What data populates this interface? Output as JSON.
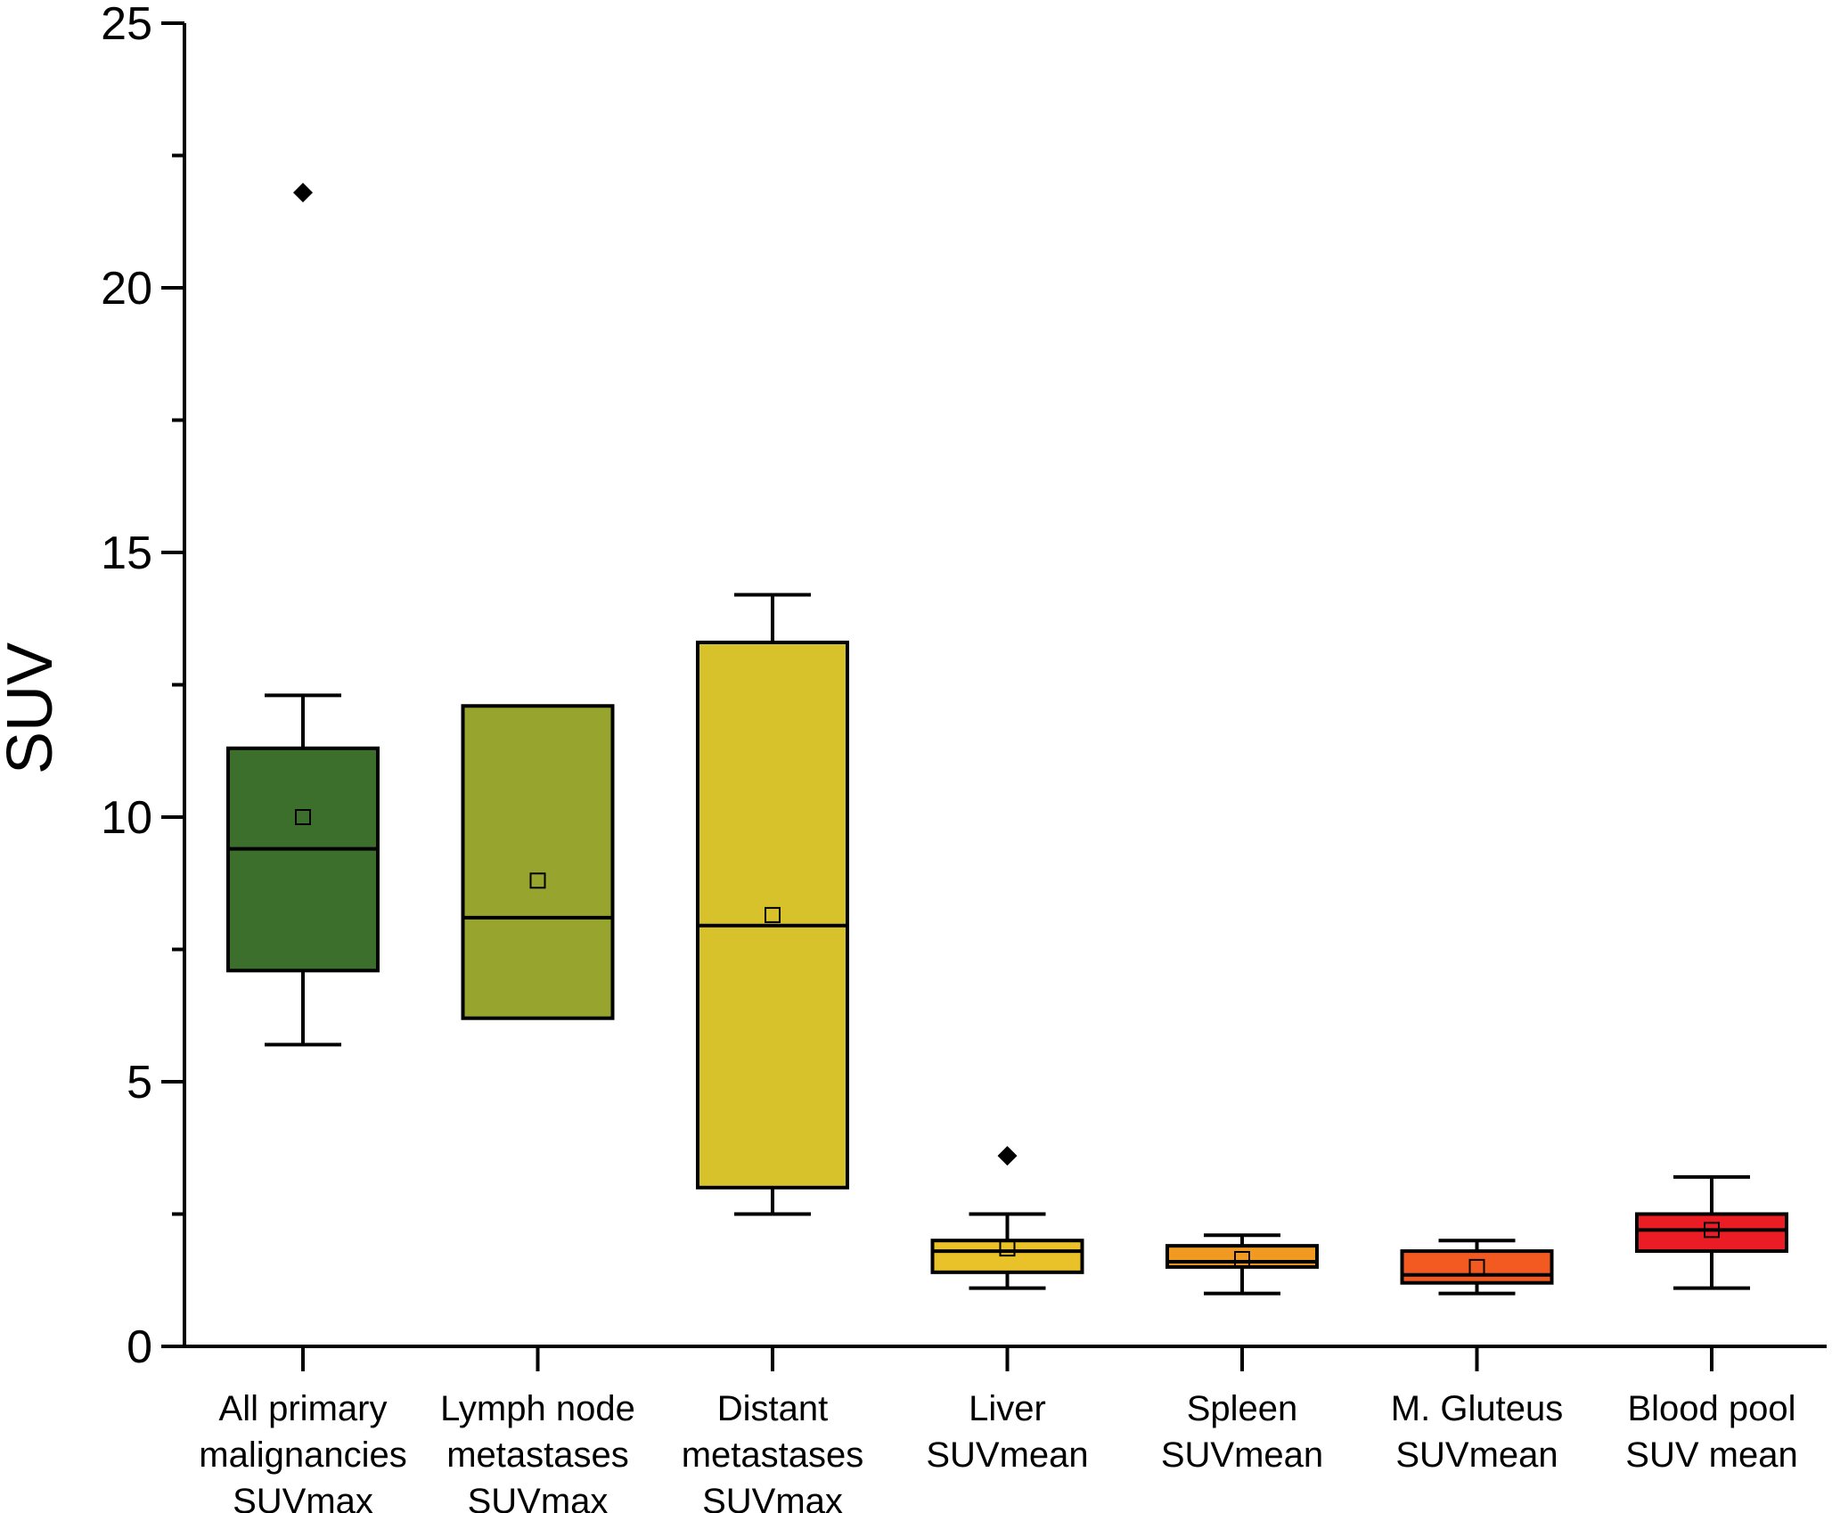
{
  "chart_data": {
    "type": "box",
    "ylabel": "SUV",
    "ylim": [
      0,
      25
    ],
    "yticks": [
      0,
      5,
      10,
      15,
      20,
      25
    ],
    "categories": [
      {
        "lines": [
          "All primary",
          "malignancies",
          "SUVmax"
        ]
      },
      {
        "lines": [
          "Lymph node",
          "metastases",
          "SUVmax"
        ]
      },
      {
        "lines": [
          "Distant",
          "metastases",
          "SUVmax"
        ]
      },
      {
        "lines": [
          "Liver",
          "SUVmean"
        ]
      },
      {
        "lines": [
          "Spleen",
          "SUVmean"
        ]
      },
      {
        "lines": [
          "M. Gluteus",
          "SUVmean"
        ]
      },
      {
        "lines": [
          "Blood pool",
          "SUV mean"
        ]
      }
    ],
    "boxes": [
      {
        "whisker_low": 5.7,
        "q1": 7.1,
        "median": 9.4,
        "q3": 11.3,
        "whisker_high": 12.3,
        "mean": 10.0,
        "outliers": [
          21.8
        ],
        "color": "#3c6e2c"
      },
      {
        "whisker_low": null,
        "q1": 6.2,
        "median": 8.1,
        "q3": 12.1,
        "whisker_high": null,
        "mean": 8.8,
        "outliers": [],
        "color": "#97a42d"
      },
      {
        "whisker_low": 2.5,
        "q1": 3.0,
        "median": 7.95,
        "q3": 13.3,
        "whisker_high": 14.2,
        "mean": 8.15,
        "outliers": [],
        "color": "#d7c22c"
      },
      {
        "whisker_low": 1.1,
        "q1": 1.4,
        "median": 1.8,
        "q3": 2.0,
        "whisker_high": 2.5,
        "mean": 1.85,
        "outliers": [
          3.6
        ],
        "color": "#e9c229"
      },
      {
        "whisker_low": 1.0,
        "q1": 1.5,
        "median": 1.6,
        "q3": 1.9,
        "whisker_high": 2.1,
        "mean": 1.65,
        "outliers": [],
        "color": "#f19a22"
      },
      {
        "whisker_low": 1.0,
        "q1": 1.2,
        "median": 1.35,
        "q3": 1.8,
        "whisker_high": 2.0,
        "mean": 1.5,
        "outliers": [],
        "color": "#f25a22"
      },
      {
        "whisker_low": 1.1,
        "q1": 1.8,
        "median": 2.2,
        "q3": 2.5,
        "whisker_high": 3.2,
        "mean": 2.2,
        "outliers": [],
        "color": "#ec1c24"
      }
    ]
  }
}
